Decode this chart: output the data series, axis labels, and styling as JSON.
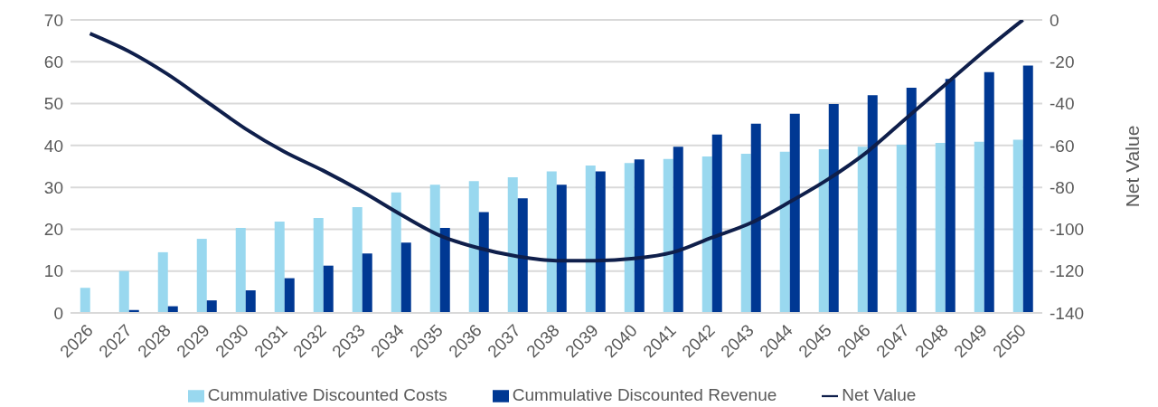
{
  "chart_data": {
    "type": "bar",
    "categories": [
      "2026",
      "2027",
      "2028",
      "2029",
      "2030",
      "2031",
      "2032",
      "2033",
      "2034",
      "2035",
      "2036",
      "2037",
      "2038",
      "2039",
      "2040",
      "2041",
      "2042",
      "2043",
      "2044",
      "2045",
      "2046",
      "2047",
      "2048",
      "2049",
      "2050"
    ],
    "series": [
      {
        "name": "Cummulative Discounted Costs",
        "color": "#99d8ef",
        "values": [
          6,
          10,
          14.5,
          17.7,
          20.3,
          21.8,
          22.7,
          25.3,
          28.8,
          30.6,
          31.5,
          32.4,
          33.8,
          35.2,
          35.8,
          36.8,
          37.4,
          38,
          38.5,
          39.1,
          39.7,
          40.2,
          40.6,
          40.9,
          41.4
        ]
      },
      {
        "name": "Cummulative Discounted Revenue",
        "color": "#003893",
        "values": [
          0,
          0.7,
          1.6,
          3,
          5.4,
          8.3,
          11.3,
          14.2,
          16.8,
          20.3,
          24.1,
          27.4,
          30.6,
          33.8,
          36.7,
          39.7,
          42.6,
          45.2,
          47.6,
          49.9,
          52,
          53.8,
          55.9,
          57.5,
          59.1
        ]
      },
      {
        "name": "Net Value",
        "type": "line",
        "axis": "y2",
        "color": "#0f1f4b",
        "values": [
          -6.5,
          -15,
          -26,
          -39,
          -52,
          -63,
          -72,
          -82,
          -93,
          -103,
          -109,
          -113,
          -115,
          -115,
          -114,
          -111,
          -104,
          -97,
          -87,
          -76,
          -63,
          -47,
          -31,
          -15,
          0
        ]
      }
    ],
    "ylim": [
      0,
      70
    ],
    "yticks": [
      0,
      10,
      20,
      30,
      40,
      50,
      60,
      70
    ],
    "y2lim": [
      -140,
      0
    ],
    "y2ticks": [
      -140,
      -120,
      -100,
      -80,
      -60,
      -40,
      -20,
      0
    ],
    "y2label": "Net Value",
    "grid": "y",
    "legend": "bottom",
    "marker": "none",
    "line_style": "solid"
  }
}
